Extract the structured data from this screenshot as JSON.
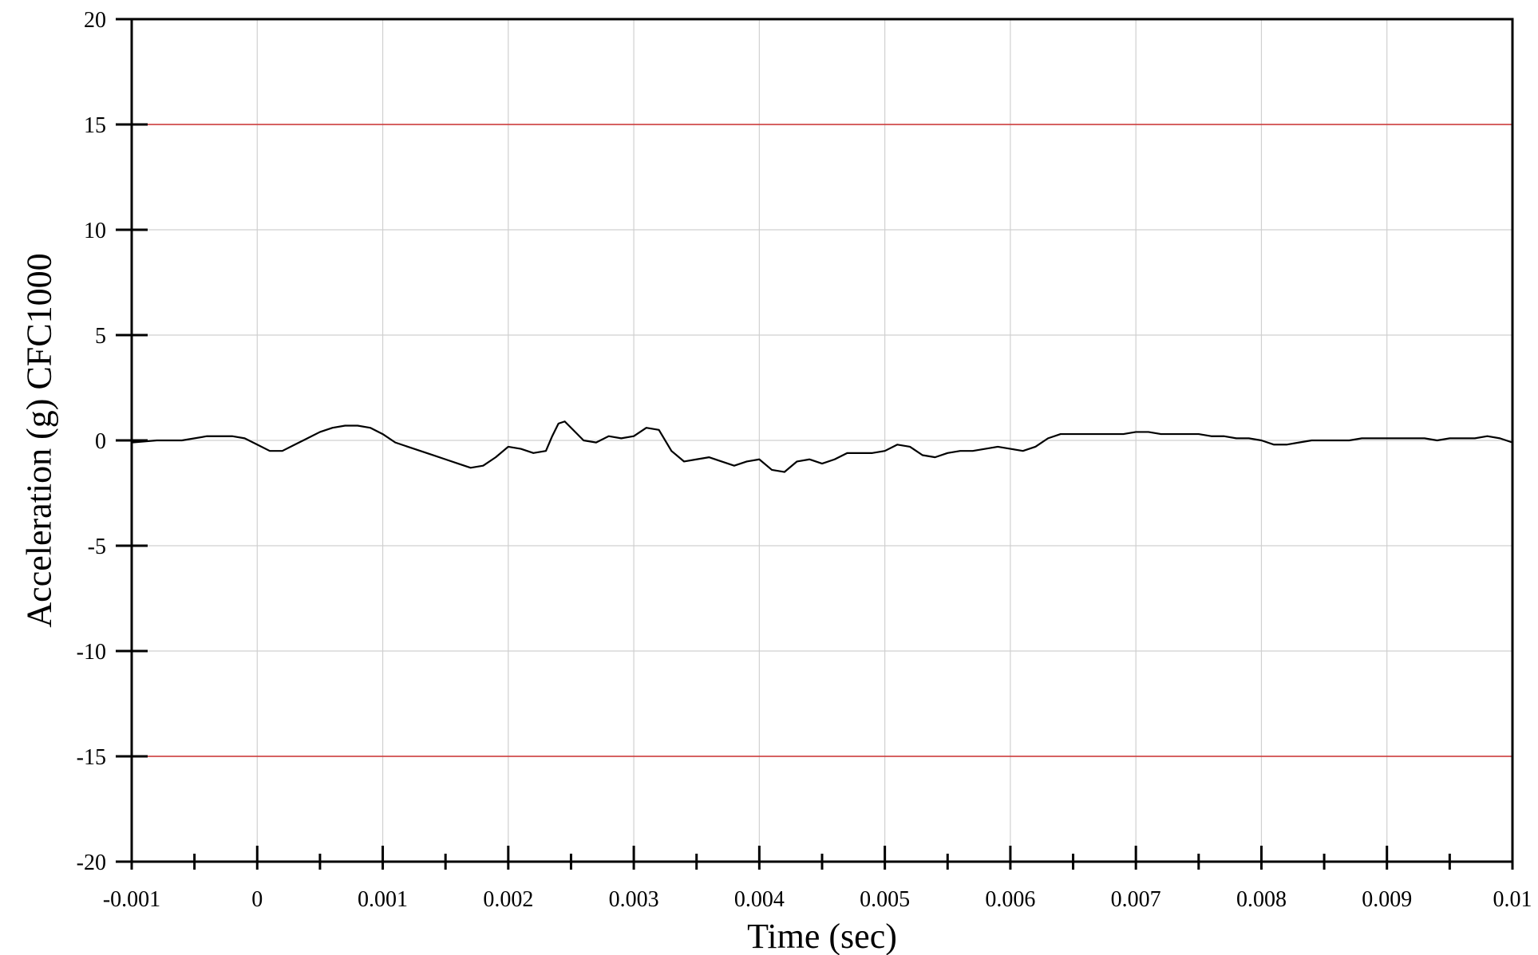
{
  "chart_data": {
    "type": "line",
    "title": "",
    "xlabel": "Time (sec)",
    "ylabel": "Acceleration (g) CFC1000",
    "xlim": [
      -0.001,
      0.01
    ],
    "ylim": [
      -20,
      20
    ],
    "grid": true,
    "legend": "none",
    "x_ticks": [
      "-0.001",
      "0",
      "0.001",
      "0.002",
      "0.003",
      "0.004",
      "0.005",
      "0.006",
      "0.007",
      "0.008",
      "0.009",
      "0.01"
    ],
    "y_ticks": [
      "20",
      "15",
      "10",
      "5",
      "0",
      "-5",
      "-10",
      "-15",
      "-20"
    ],
    "x_tick_values": [
      -0.001,
      0,
      0.001,
      0.002,
      0.003,
      0.004,
      0.005,
      0.006,
      0.007,
      0.008,
      0.009,
      0.01
    ],
    "y_tick_values": [
      20,
      15,
      10,
      5,
      0,
      -5,
      -10,
      -15,
      -20
    ],
    "limit_lines": [
      {
        "y": 15,
        "color": "#cc3333"
      },
      {
        "y": -15,
        "color": "#cc3333"
      }
    ],
    "series": [
      {
        "color": "#000000",
        "x": [
          -0.001,
          -0.0008,
          -0.0006,
          -0.0004,
          -0.0002,
          -0.0001,
          0.0,
          0.0001,
          0.0002,
          0.0003,
          0.0004,
          0.0005,
          0.0006,
          0.0007,
          0.0008,
          0.0009,
          0.001,
          0.0011,
          0.0012,
          0.0013,
          0.0014,
          0.0015,
          0.0016,
          0.0017,
          0.0018,
          0.0019,
          0.002,
          0.0021,
          0.0022,
          0.0023,
          0.00235,
          0.0024,
          0.00245,
          0.0025,
          0.0026,
          0.0027,
          0.0028,
          0.0029,
          0.003,
          0.0031,
          0.0032,
          0.0033,
          0.0034,
          0.0035,
          0.0036,
          0.0037,
          0.0038,
          0.0039,
          0.004,
          0.0041,
          0.0042,
          0.0043,
          0.0044,
          0.0045,
          0.0046,
          0.0047,
          0.0048,
          0.0049,
          0.005,
          0.0051,
          0.0052,
          0.0053,
          0.0054,
          0.0055,
          0.0056,
          0.0057,
          0.0058,
          0.0059,
          0.006,
          0.0061,
          0.0062,
          0.0063,
          0.0064,
          0.0065,
          0.0066,
          0.0067,
          0.0068,
          0.0069,
          0.007,
          0.0071,
          0.0072,
          0.0073,
          0.0074,
          0.0075,
          0.0076,
          0.0077,
          0.0078,
          0.0079,
          0.008,
          0.0081,
          0.0082,
          0.0083,
          0.0084,
          0.0085,
          0.0086,
          0.0087,
          0.0088,
          0.0089,
          0.009,
          0.0091,
          0.0092,
          0.0093,
          0.0094,
          0.0095,
          0.0096,
          0.0097,
          0.0098,
          0.0099,
          0.01
        ],
        "y": [
          -0.1,
          0.0,
          0.0,
          0.2,
          0.2,
          0.1,
          -0.2,
          -0.5,
          -0.5,
          -0.2,
          0.1,
          0.4,
          0.6,
          0.7,
          0.7,
          0.6,
          0.3,
          -0.1,
          -0.3,
          -0.5,
          -0.7,
          -0.9,
          -1.1,
          -1.3,
          -1.2,
          -0.8,
          -0.3,
          -0.4,
          -0.6,
          -0.5,
          0.2,
          0.8,
          0.9,
          0.6,
          0.0,
          -0.1,
          0.2,
          0.1,
          0.2,
          0.6,
          0.5,
          -0.5,
          -1.0,
          -0.9,
          -0.8,
          -1.0,
          -1.2,
          -1.0,
          -0.9,
          -1.4,
          -1.5,
          -1.0,
          -0.9,
          -1.1,
          -0.9,
          -0.6,
          -0.6,
          -0.6,
          -0.5,
          -0.2,
          -0.3,
          -0.7,
          -0.8,
          -0.6,
          -0.5,
          -0.5,
          -0.4,
          -0.3,
          -0.4,
          -0.5,
          -0.3,
          0.1,
          0.3,
          0.3,
          0.3,
          0.3,
          0.3,
          0.3,
          0.4,
          0.4,
          0.3,
          0.3,
          0.3,
          0.3,
          0.2,
          0.2,
          0.1,
          0.1,
          0.0,
          -0.2,
          -0.2,
          -0.1,
          0.0,
          0.0,
          0.0,
          0.0,
          0.1,
          0.1,
          0.1,
          0.1,
          0.1,
          0.1,
          0.0,
          0.1,
          0.1,
          0.1,
          0.2,
          0.1,
          -0.1
        ]
      }
    ]
  }
}
